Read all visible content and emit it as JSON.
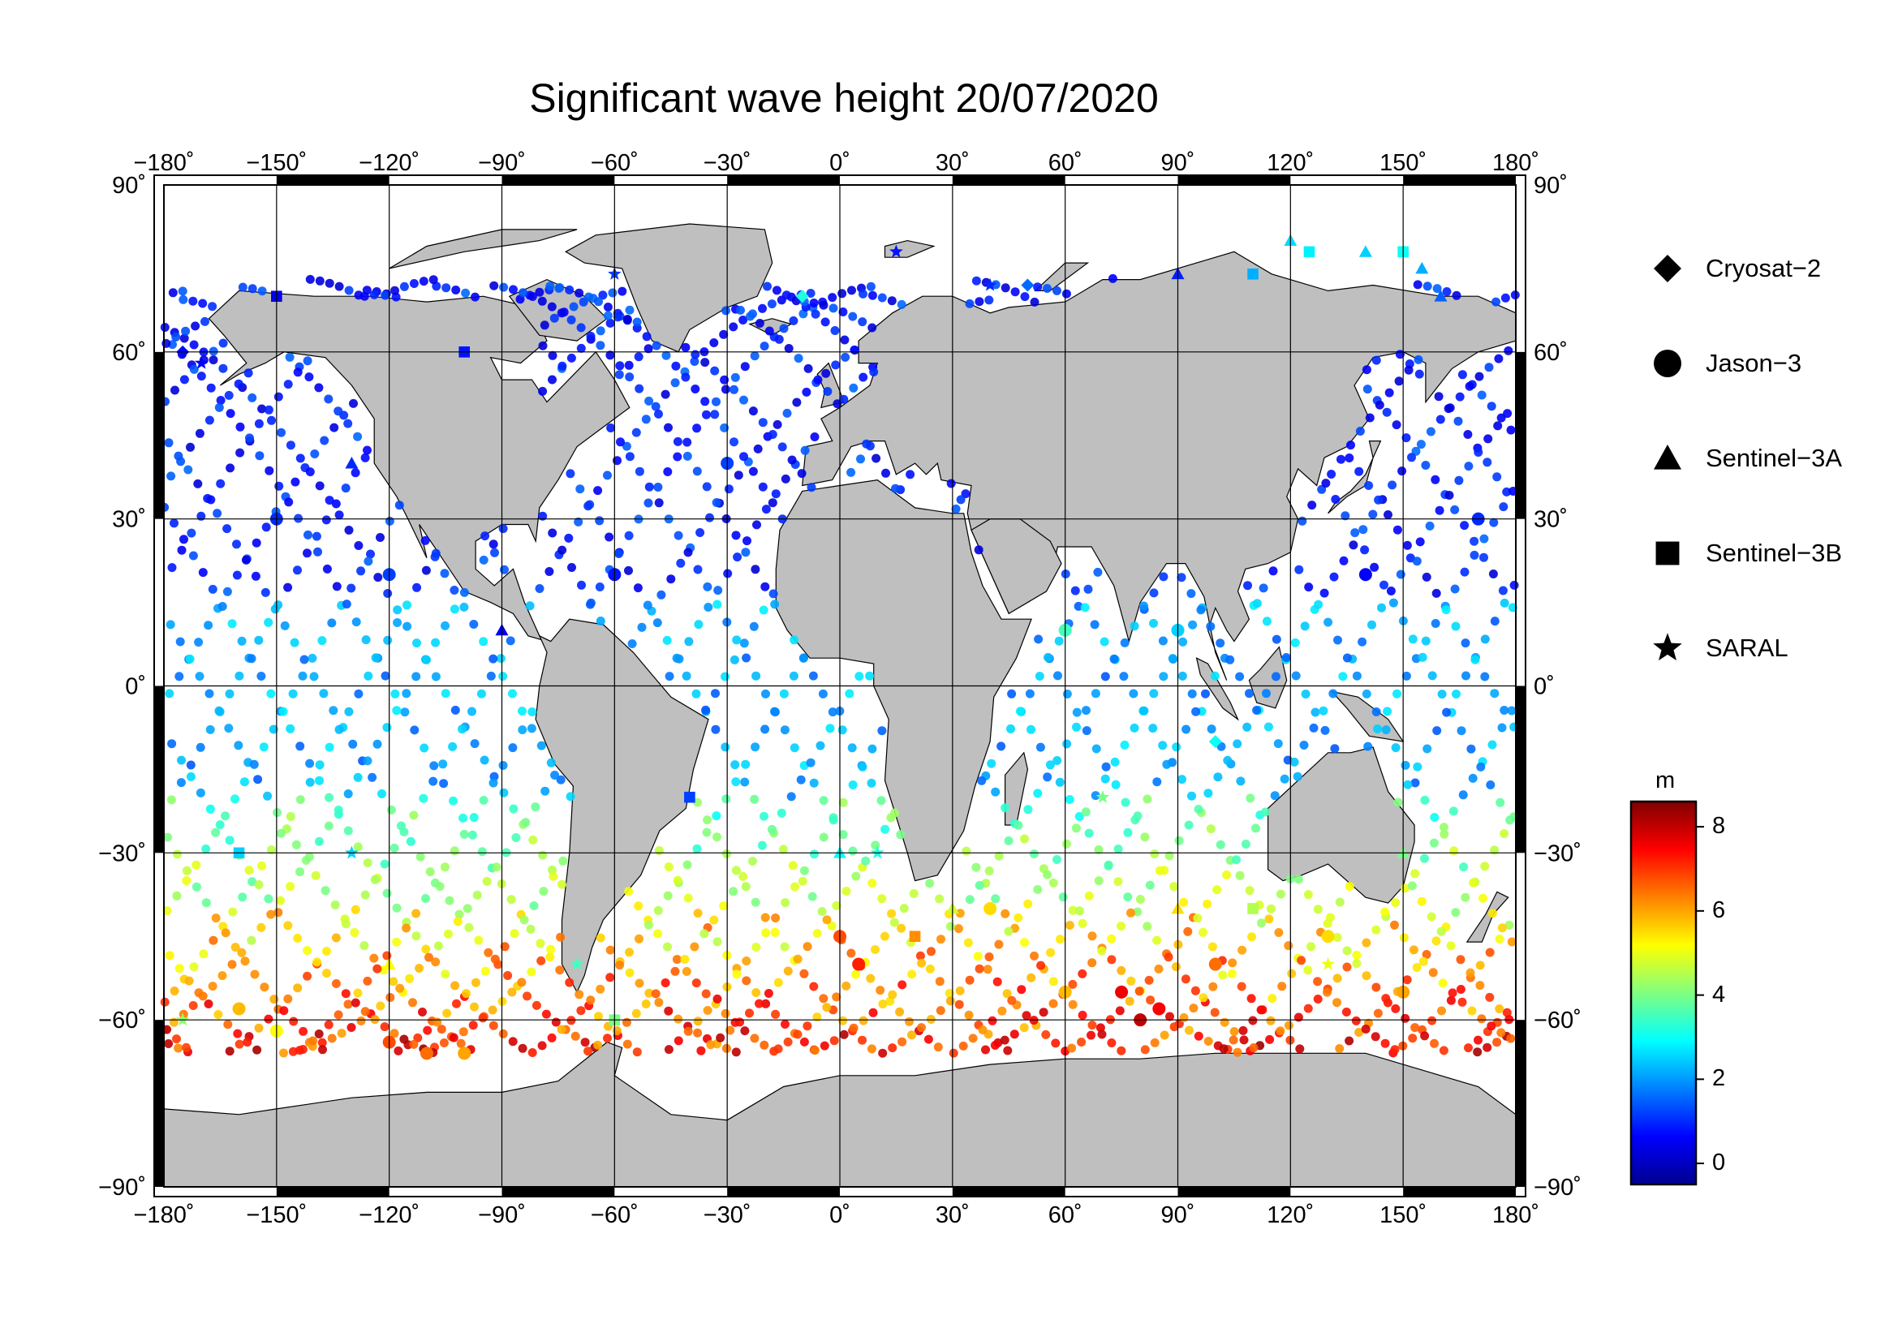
{
  "title": "Significant wave height 20/07/2020",
  "axes": {
    "lon_ticks": [
      "−180˚",
      "−150˚",
      "−120˚",
      "−90˚",
      "−60˚",
      "−30˚",
      "0˚",
      "30˚",
      "60˚",
      "90˚",
      "120˚",
      "150˚",
      "180˚"
    ],
    "lat_ticks": [
      "90˚",
      "60˚",
      "30˚",
      "0˚",
      "−30˚",
      "−60˚",
      "−90˚"
    ]
  },
  "legend": {
    "items": [
      {
        "label": "Cryosat−2",
        "symbol": "diamond"
      },
      {
        "label": "Jason−3",
        "symbol": "circle"
      },
      {
        "label": "Sentinel−3A",
        "symbol": "triangle"
      },
      {
        "label": "Sentinel−3B",
        "symbol": "square"
      },
      {
        "label": "SARAL",
        "symbol": "star"
      }
    ]
  },
  "colorbar": {
    "unit": "m",
    "min": -0.5,
    "max": 8.6,
    "ticks": [
      {
        "value": 0,
        "label": "0"
      },
      {
        "value": 2,
        "label": "2"
      },
      {
        "value": 4,
        "label": "4"
      },
      {
        "value": 6,
        "label": "6"
      },
      {
        "value": 8,
        "label": "8"
      }
    ],
    "colormap": [
      "#00008f",
      "#0000ff",
      "#0080ff",
      "#00ffff",
      "#80ff80",
      "#ffff00",
      "#ff8000",
      "#ff0000",
      "#800000"
    ]
  },
  "colors": {
    "land": "#bfbfbf",
    "ocean": "#ffffff",
    "grid": "#000000",
    "frame": "#000000"
  },
  "chart_data": {
    "type": "scatter",
    "projection": "equirectangular",
    "xlim": [
      -180,
      180
    ],
    "ylim": [
      -90,
      90
    ],
    "series": [
      {
        "name": "Jason−3",
        "points": [
          [
            -160,
            -58,
            5.8
          ],
          [
            -150,
            -62,
            5.2
          ],
          [
            -120,
            -64,
            6.8
          ],
          [
            -110,
            -66,
            6.5
          ],
          [
            -100,
            -66,
            6.0
          ],
          [
            0,
            -45,
            6.8
          ],
          [
            5,
            -50,
            7.2
          ],
          [
            40,
            -40,
            5.5
          ],
          [
            60,
            -55,
            5.8
          ],
          [
            75,
            -55,
            7.6
          ],
          [
            80,
            -60,
            8.0
          ],
          [
            85,
            -58,
            7.5
          ],
          [
            100,
            -50,
            6.5
          ],
          [
            130,
            -45,
            5.5
          ],
          [
            150,
            -55,
            6.0
          ],
          [
            -150,
            30,
            1.0
          ],
          [
            -120,
            20,
            1.2
          ],
          [
            -60,
            20,
            0.8
          ],
          [
            -30,
            40,
            1.2
          ],
          [
            170,
            30,
            1.0
          ],
          [
            140,
            20,
            0.6
          ],
          [
            90,
            10,
            2.5
          ],
          [
            60,
            10,
            3.5
          ]
        ]
      },
      {
        "name": "Sentinel−3A",
        "points": [
          [
            120,
            80,
            2.6
          ],
          [
            140,
            78,
            2.5
          ],
          [
            155,
            75,
            2.2
          ],
          [
            90,
            74,
            0.9
          ],
          [
            160,
            70,
            1.5
          ],
          [
            -130,
            40,
            1.0
          ],
          [
            -90,
            10,
            0.5
          ],
          [
            0,
            -30,
            3.0
          ],
          [
            30,
            -40,
            4.8
          ],
          [
            90,
            -40,
            5.5
          ],
          [
            150,
            -30,
            4.0
          ],
          [
            -120,
            -50,
            5.2
          ]
        ]
      },
      {
        "name": "Sentinel−3B",
        "points": [
          [
            125,
            78,
            2.8
          ],
          [
            150,
            78,
            3.0
          ],
          [
            110,
            74,
            2.2
          ],
          [
            -150,
            70,
            0.4
          ],
          [
            -100,
            60,
            0.8
          ],
          [
            -40,
            -20,
            1.2
          ],
          [
            20,
            -45,
            6.2
          ],
          [
            110,
            -40,
            4.5
          ],
          [
            -60,
            -60,
            4.0
          ],
          [
            -160,
            -30,
            2.5
          ]
        ]
      },
      {
        "name": "SARAL",
        "points": [
          [
            15,
            78,
            0.8
          ],
          [
            40,
            72,
            1.0
          ],
          [
            -60,
            74,
            1.2
          ],
          [
            -170,
            58,
            0.6
          ],
          [
            -130,
            -30,
            2.5
          ],
          [
            -70,
            -50,
            3.5
          ],
          [
            10,
            -30,
            3.2
          ],
          [
            70,
            -20,
            4.0
          ],
          [
            130,
            -50,
            5.0
          ],
          [
            -175,
            -60,
            4.2
          ]
        ]
      },
      {
        "name": "Cryosat−2",
        "points": [
          [
            50,
            72,
            1.6
          ],
          [
            -10,
            70,
            3.2
          ],
          [
            -175,
            60,
            0.7
          ],
          [
            100,
            -10,
            3.0
          ]
        ]
      }
    ]
  }
}
